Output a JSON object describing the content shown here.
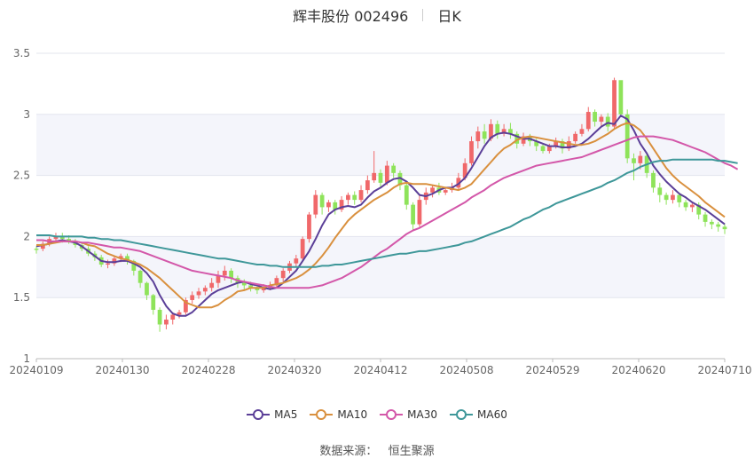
{
  "header": {
    "name": "辉丰股份 002496",
    "period": "日K"
  },
  "source": {
    "label": "数据来源：",
    "value": "恒生聚源"
  },
  "colors": {
    "up": "#f0686a",
    "down": "#8ee35a",
    "ma5": "#5b3f98",
    "ma10": "#d9903e",
    "ma30": "#d357a9",
    "ma60": "#3e9799"
  },
  "chart_data": {
    "type": "candlestick",
    "ylim": [
      1,
      3.5
    ],
    "yticks": [
      "1",
      "1.5",
      "2",
      "2.5",
      "3",
      "3.5"
    ],
    "xticks": [
      "20240109",
      "20240130",
      "20240228",
      "20240320",
      "20240412",
      "20240508",
      "20240529",
      "20240620",
      "20240710"
    ],
    "grid": true,
    "candles": [
      [
        1.9,
        1.89,
        1.92,
        1.86
      ],
      [
        1.9,
        1.94,
        1.96,
        1.88
      ],
      [
        1.94,
        1.98,
        2.0,
        1.92
      ],
      [
        1.98,
        2.0,
        2.03,
        1.96
      ],
      [
        2.0,
        1.98,
        2.03,
        1.95
      ],
      [
        1.98,
        1.96,
        2.01,
        1.94
      ],
      [
        1.96,
        1.93,
        1.98,
        1.91
      ],
      [
        1.93,
        1.9,
        1.95,
        1.88
      ],
      [
        1.9,
        1.86,
        1.92,
        1.84
      ],
      [
        1.86,
        1.83,
        1.88,
        1.8
      ],
      [
        1.83,
        1.77,
        1.85,
        1.75
      ],
      [
        1.77,
        1.78,
        1.81,
        1.74
      ],
      [
        1.78,
        1.82,
        1.84,
        1.76
      ],
      [
        1.82,
        1.84,
        1.86,
        1.79
      ],
      [
        1.84,
        1.8,
        1.86,
        1.77
      ],
      [
        1.8,
        1.72,
        1.81,
        1.68
      ],
      [
        1.72,
        1.62,
        1.73,
        1.58
      ],
      [
        1.62,
        1.52,
        1.63,
        1.48
      ],
      [
        1.52,
        1.4,
        1.53,
        1.36
      ],
      [
        1.4,
        1.28,
        1.42,
        1.22
      ],
      [
        1.28,
        1.32,
        1.36,
        1.24
      ],
      [
        1.32,
        1.36,
        1.38,
        1.28
      ],
      [
        1.36,
        1.38,
        1.4,
        1.33
      ],
      [
        1.38,
        1.48,
        1.5,
        1.36
      ],
      [
        1.48,
        1.52,
        1.55,
        1.45
      ],
      [
        1.52,
        1.55,
        1.58,
        1.49
      ],
      [
        1.55,
        1.58,
        1.6,
        1.52
      ],
      [
        1.58,
        1.62,
        1.66,
        1.55
      ],
      [
        1.62,
        1.68,
        1.72,
        1.58
      ],
      [
        1.68,
        1.72,
        1.76,
        1.64
      ],
      [
        1.72,
        1.66,
        1.74,
        1.62
      ],
      [
        1.66,
        1.62,
        1.68,
        1.58
      ],
      [
        1.62,
        1.6,
        1.65,
        1.56
      ],
      [
        1.6,
        1.58,
        1.63,
        1.55
      ],
      [
        1.58,
        1.56,
        1.61,
        1.53
      ],
      [
        1.56,
        1.58,
        1.61,
        1.54
      ],
      [
        1.58,
        1.6,
        1.63,
        1.56
      ],
      [
        1.6,
        1.66,
        1.68,
        1.58
      ],
      [
        1.66,
        1.72,
        1.74,
        1.63
      ],
      [
        1.72,
        1.78,
        1.8,
        1.7
      ],
      [
        1.78,
        1.82,
        1.85,
        1.75
      ],
      [
        1.82,
        1.98,
        2.0,
        1.8
      ],
      [
        1.98,
        2.18,
        2.2,
        1.95
      ],
      [
        2.18,
        2.34,
        2.38,
        2.15
      ],
      [
        2.34,
        2.24,
        2.36,
        2.18
      ],
      [
        2.24,
        2.28,
        2.3,
        2.2
      ],
      [
        2.28,
        2.22,
        2.3,
        2.18
      ],
      [
        2.22,
        2.3,
        2.33,
        2.2
      ],
      [
        2.3,
        2.34,
        2.36,
        2.26
      ],
      [
        2.34,
        2.3,
        2.37,
        2.26
      ],
      [
        2.3,
        2.38,
        2.42,
        2.28
      ],
      [
        2.38,
        2.46,
        2.5,
        2.35
      ],
      [
        2.46,
        2.52,
        2.7,
        2.44
      ],
      [
        2.52,
        2.44,
        2.55,
        2.4
      ],
      [
        2.44,
        2.58,
        2.62,
        2.42
      ],
      [
        2.58,
        2.52,
        2.6,
        2.48
      ],
      [
        2.52,
        2.42,
        2.54,
        2.38
      ],
      [
        2.42,
        2.26,
        2.44,
        2.22
      ],
      [
        2.26,
        2.1,
        2.28,
        2.05
      ],
      [
        2.1,
        2.3,
        2.34,
        2.08
      ],
      [
        2.3,
        2.36,
        2.4,
        2.26
      ],
      [
        2.36,
        2.4,
        2.42,
        2.32
      ],
      [
        2.4,
        2.36,
        2.44,
        2.34
      ],
      [
        2.36,
        2.38,
        2.4,
        2.34
      ],
      [
        2.38,
        2.4,
        2.44,
        2.36
      ],
      [
        2.4,
        2.48,
        2.52,
        2.38
      ],
      [
        2.48,
        2.6,
        2.64,
        2.46
      ],
      [
        2.6,
        2.78,
        2.82,
        2.58
      ],
      [
        2.78,
        2.86,
        2.9,
        2.72
      ],
      [
        2.86,
        2.8,
        2.92,
        2.76
      ],
      [
        2.8,
        2.92,
        2.96,
        2.78
      ],
      [
        2.92,
        2.84,
        2.95,
        2.8
      ],
      [
        2.84,
        2.88,
        2.92,
        2.82
      ],
      [
        2.88,
        2.84,
        2.93,
        2.8
      ],
      [
        2.84,
        2.76,
        2.86,
        2.72
      ],
      [
        2.76,
        2.82,
        2.85,
        2.74
      ],
      [
        2.82,
        2.78,
        2.84,
        2.74
      ],
      [
        2.78,
        2.74,
        2.8,
        2.7
      ],
      [
        2.74,
        2.7,
        2.76,
        2.68
      ],
      [
        2.7,
        2.74,
        2.76,
        2.68
      ],
      [
        2.74,
        2.78,
        2.81,
        2.72
      ],
      [
        2.78,
        2.72,
        2.8,
        2.68
      ],
      [
        2.72,
        2.78,
        2.82,
        2.7
      ],
      [
        2.78,
        2.84,
        2.86,
        2.76
      ],
      [
        2.84,
        2.88,
        2.92,
        2.82
      ],
      [
        2.88,
        3.02,
        3.06,
        2.86
      ],
      [
        3.02,
        2.94,
        3.04,
        2.9
      ],
      [
        2.94,
        2.98,
        3.0,
        2.9
      ],
      [
        2.98,
        2.9,
        3.01,
        2.86
      ],
      [
        2.9,
        3.28,
        3.3,
        2.88
      ],
      [
        3.28,
        3.0,
        3.26,
        2.98
      ],
      [
        3.0,
        2.64,
        3.04,
        2.6
      ],
      [
        2.64,
        2.6,
        2.68,
        2.46
      ],
      [
        2.6,
        2.66,
        2.7,
        2.55
      ],
      [
        2.66,
        2.52,
        2.68,
        2.48
      ],
      [
        2.52,
        2.4,
        2.54,
        2.36
      ],
      [
        2.4,
        2.34,
        2.44,
        2.28
      ],
      [
        2.34,
        2.3,
        2.36,
        2.26
      ],
      [
        2.3,
        2.34,
        2.38,
        2.27
      ],
      [
        2.34,
        2.28,
        2.36,
        2.24
      ],
      [
        2.28,
        2.24,
        2.3,
        2.21
      ],
      [
        2.24,
        2.26,
        2.28,
        2.2
      ],
      [
        2.26,
        2.18,
        2.28,
        2.14
      ],
      [
        2.18,
        2.12,
        2.2,
        2.08
      ],
      [
        2.12,
        2.1,
        2.14,
        2.06
      ],
      [
        2.1,
        2.08,
        2.12,
        2.04
      ],
      [
        2.08,
        2.06,
        2.1,
        2.02
      ]
    ],
    "series": [
      {
        "name": "MA5",
        "values": [
          1.92,
          1.93,
          1.94,
          1.96,
          1.97,
          1.96,
          1.95,
          1.92,
          1.88,
          1.84,
          1.8,
          1.79,
          1.79,
          1.8,
          1.8,
          1.78,
          1.75,
          1.7,
          1.63,
          1.52,
          1.43,
          1.37,
          1.35,
          1.35,
          1.38,
          1.43,
          1.48,
          1.53,
          1.56,
          1.58,
          1.6,
          1.62,
          1.63,
          1.61,
          1.6,
          1.58,
          1.57,
          1.58,
          1.62,
          1.67,
          1.72,
          1.8,
          1.88,
          1.98,
          2.09,
          2.18,
          2.22,
          2.24,
          2.25,
          2.24,
          2.26,
          2.32,
          2.37,
          2.4,
          2.44,
          2.47,
          2.48,
          2.45,
          2.4,
          2.34,
          2.33,
          2.35,
          2.38,
          2.4,
          2.4,
          2.43,
          2.48,
          2.56,
          2.65,
          2.74,
          2.81,
          2.84,
          2.85,
          2.84,
          2.82,
          2.8,
          2.8,
          2.78,
          2.76,
          2.74,
          2.74,
          2.73,
          2.73,
          2.74,
          2.76,
          2.8,
          2.85,
          2.9,
          2.93,
          2.92,
          2.99,
          2.96,
          2.87,
          2.76,
          2.68,
          2.58,
          2.51,
          2.45,
          2.4,
          2.35,
          2.32,
          2.28,
          2.25,
          2.22,
          2.18,
          2.14,
          2.1
        ]
      },
      {
        "name": "MA10",
        "values": [
          1.93,
          1.93,
          1.94,
          1.95,
          1.96,
          1.96,
          1.96,
          1.95,
          1.93,
          1.92,
          1.89,
          1.86,
          1.84,
          1.82,
          1.81,
          1.79,
          1.77,
          1.74,
          1.7,
          1.66,
          1.61,
          1.56,
          1.51,
          1.46,
          1.44,
          1.42,
          1.42,
          1.42,
          1.44,
          1.48,
          1.51,
          1.55,
          1.56,
          1.58,
          1.58,
          1.58,
          1.6,
          1.61,
          1.62,
          1.64,
          1.66,
          1.69,
          1.73,
          1.78,
          1.84,
          1.91,
          1.99,
          2.06,
          2.13,
          2.18,
          2.22,
          2.26,
          2.3,
          2.33,
          2.36,
          2.4,
          2.43,
          2.44,
          2.43,
          2.43,
          2.43,
          2.42,
          2.41,
          2.4,
          2.39,
          2.38,
          2.4,
          2.43,
          2.49,
          2.55,
          2.61,
          2.67,
          2.72,
          2.75,
          2.79,
          2.81,
          2.82,
          2.81,
          2.8,
          2.79,
          2.78,
          2.77,
          2.76,
          2.75,
          2.75,
          2.76,
          2.78,
          2.81,
          2.84,
          2.88,
          2.91,
          2.93,
          2.91,
          2.87,
          2.8,
          2.72,
          2.64,
          2.56,
          2.5,
          2.45,
          2.41,
          2.37,
          2.33,
          2.28,
          2.24,
          2.2,
          2.16
        ]
      },
      {
        "name": "MA30",
        "values": [
          1.97,
          1.97,
          1.96,
          1.96,
          1.96,
          1.96,
          1.96,
          1.95,
          1.95,
          1.94,
          1.93,
          1.92,
          1.91,
          1.91,
          1.9,
          1.89,
          1.88,
          1.86,
          1.84,
          1.82,
          1.8,
          1.78,
          1.76,
          1.74,
          1.72,
          1.71,
          1.7,
          1.69,
          1.68,
          1.67,
          1.66,
          1.64,
          1.63,
          1.62,
          1.61,
          1.6,
          1.59,
          1.58,
          1.58,
          1.58,
          1.58,
          1.58,
          1.58,
          1.59,
          1.6,
          1.62,
          1.64,
          1.66,
          1.69,
          1.72,
          1.75,
          1.79,
          1.83,
          1.87,
          1.9,
          1.94,
          1.98,
          2.02,
          2.05,
          2.07,
          2.1,
          2.13,
          2.16,
          2.19,
          2.22,
          2.25,
          2.28,
          2.32,
          2.35,
          2.38,
          2.42,
          2.45,
          2.48,
          2.5,
          2.52,
          2.54,
          2.56,
          2.58,
          2.59,
          2.6,
          2.61,
          2.62,
          2.63,
          2.64,
          2.65,
          2.67,
          2.69,
          2.71,
          2.73,
          2.75,
          2.77,
          2.79,
          2.81,
          2.82,
          2.82,
          2.82,
          2.81,
          2.8,
          2.79,
          2.77,
          2.75,
          2.73,
          2.71,
          2.69,
          2.66,
          2.63,
          2.6,
          2.58,
          2.55
        ]
      },
      {
        "name": "MA60",
        "values": [
          2.01,
          2.01,
          2.01,
          2.0,
          2.0,
          2.0,
          2.0,
          2.0,
          1.99,
          1.99,
          1.98,
          1.98,
          1.97,
          1.97,
          1.96,
          1.95,
          1.94,
          1.93,
          1.92,
          1.91,
          1.9,
          1.89,
          1.88,
          1.87,
          1.86,
          1.85,
          1.84,
          1.83,
          1.82,
          1.82,
          1.81,
          1.8,
          1.79,
          1.78,
          1.77,
          1.77,
          1.76,
          1.76,
          1.75,
          1.75,
          1.75,
          1.75,
          1.75,
          1.75,
          1.76,
          1.76,
          1.77,
          1.77,
          1.78,
          1.79,
          1.8,
          1.81,
          1.82,
          1.83,
          1.84,
          1.85,
          1.86,
          1.86,
          1.87,
          1.88,
          1.88,
          1.89,
          1.9,
          1.91,
          1.92,
          1.93,
          1.95,
          1.96,
          1.98,
          2.0,
          2.02,
          2.04,
          2.06,
          2.08,
          2.11,
          2.14,
          2.16,
          2.19,
          2.22,
          2.24,
          2.27,
          2.29,
          2.31,
          2.33,
          2.35,
          2.37,
          2.39,
          2.41,
          2.44,
          2.46,
          2.49,
          2.52,
          2.54,
          2.57,
          2.59,
          2.61,
          2.62,
          2.62,
          2.63,
          2.63,
          2.63,
          2.63,
          2.63,
          2.63,
          2.63,
          2.62,
          2.62,
          2.61,
          2.6
        ]
      }
    ]
  }
}
